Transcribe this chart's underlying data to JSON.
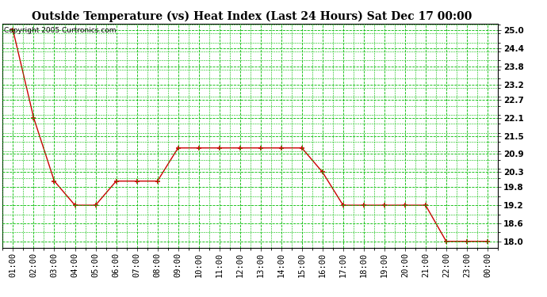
{
  "title": "Outside Temperature (vs) Heat Index (Last 24 Hours) Sat Dec 17 00:00",
  "copyright": "Copyright 2005 Curtronics.com",
  "x_labels": [
    "01:00",
    "02:00",
    "03:00",
    "04:00",
    "05:00",
    "06:00",
    "07:00",
    "08:00",
    "09:00",
    "10:00",
    "11:00",
    "12:00",
    "13:00",
    "14:00",
    "15:00",
    "16:00",
    "17:00",
    "18:00",
    "19:00",
    "20:00",
    "21:00",
    "22:00",
    "23:00",
    "00:00"
  ],
  "y_values": [
    25.0,
    22.1,
    20.0,
    19.2,
    19.2,
    20.0,
    20.0,
    20.0,
    21.1,
    21.1,
    21.1,
    21.1,
    21.1,
    21.1,
    21.1,
    20.3,
    19.2,
    19.2,
    19.2,
    19.2,
    19.2,
    18.0,
    18.0,
    18.0
  ],
  "y_ticks": [
    18.0,
    18.6,
    19.2,
    19.8,
    20.3,
    20.9,
    21.5,
    22.1,
    22.7,
    23.2,
    23.8,
    24.4,
    25.0
  ],
  "ylim_min": 17.78,
  "ylim_max": 25.22,
  "line_color": "#cc0000",
  "marker_color": "#cc0000",
  "grid_color": "#00bb00",
  "bg_color": "#ffffff",
  "title_fontsize": 10,
  "copyright_fontsize": 6.5,
  "tick_fontsize": 7.5
}
